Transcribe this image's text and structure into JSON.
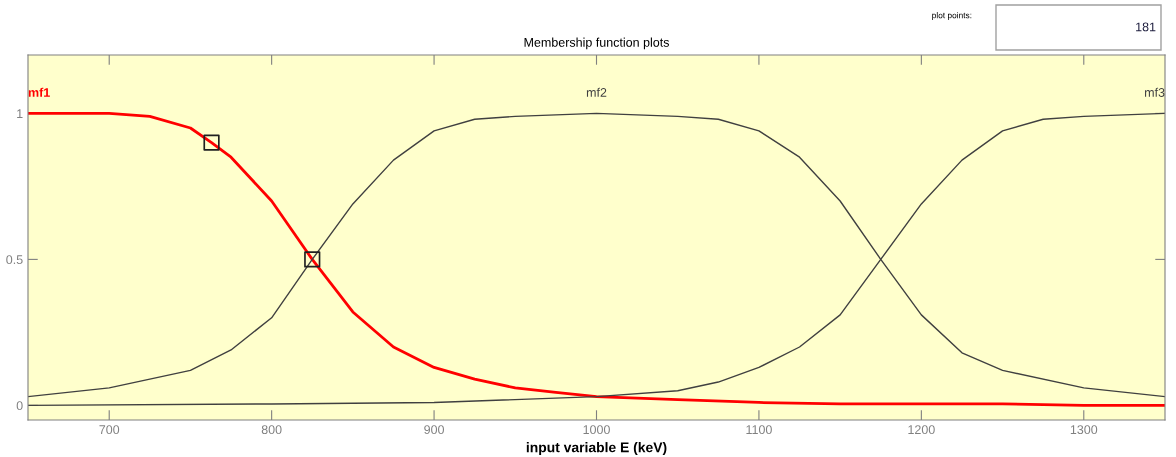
{
  "chart_data": {
    "type": "line",
    "title": "Membership function plots",
    "xlabel": "input variable E (keV)",
    "xlim": [
      650,
      1350
    ],
    "xticks": [
      700,
      800,
      900,
      1000,
      1100,
      1200,
      1300
    ],
    "ylim": [
      -0.05,
      1.2
    ],
    "yticks": [
      0,
      0.5,
      1
    ],
    "grid": false,
    "legend": false,
    "marker": "none",
    "line_style": "solid",
    "annotations": [
      "plot points:",
      "181"
    ],
    "series": [
      {
        "name": "mf1",
        "color": "#ff0000",
        "x": [
          650,
          700,
          725,
          750,
          763,
          775,
          800,
          825,
          850,
          875,
          900,
          925,
          950,
          975,
          1000,
          1050,
          1100,
          1150,
          1200,
          1250,
          1300,
          1350
        ],
        "values": [
          1.0,
          1.0,
          0.99,
          0.95,
          0.9,
          0.85,
          0.7,
          0.5,
          0.32,
          0.2,
          0.13,
          0.09,
          0.06,
          0.045,
          0.03,
          0.02,
          0.01,
          0.005,
          0.005,
          0.005,
          0,
          0
        ]
      },
      {
        "name": "mf2",
        "color": "#404040",
        "x": [
          650,
          700,
          750,
          775,
          800,
          825,
          850,
          875,
          900,
          925,
          950,
          1000,
          1050,
          1075,
          1100,
          1125,
          1150,
          1175,
          1200,
          1225,
          1250,
          1300,
          1350
        ],
        "values": [
          0.03,
          0.06,
          0.12,
          0.19,
          0.3,
          0.5,
          0.69,
          0.84,
          0.94,
          0.98,
          0.99,
          1.0,
          0.99,
          0.98,
          0.94,
          0.85,
          0.7,
          0.5,
          0.31,
          0.18,
          0.12,
          0.06,
          0.03
        ]
      },
      {
        "name": "mf3",
        "color": "#404040",
        "x": [
          650,
          800,
          900,
          1000,
          1050,
          1075,
          1100,
          1125,
          1150,
          1175,
          1200,
          1225,
          1250,
          1275,
          1300,
          1350
        ],
        "values": [
          0,
          0.005,
          0.01,
          0.03,
          0.05,
          0.08,
          0.13,
          0.2,
          0.31,
          0.5,
          0.69,
          0.84,
          0.94,
          0.98,
          0.99,
          1.0
        ]
      },
      {
        "type": "scatter",
        "marker": "square",
        "color": "#202020",
        "x": [
          763,
          825
        ],
        "values": [
          0.9,
          0.5
        ]
      }
    ]
  }
}
